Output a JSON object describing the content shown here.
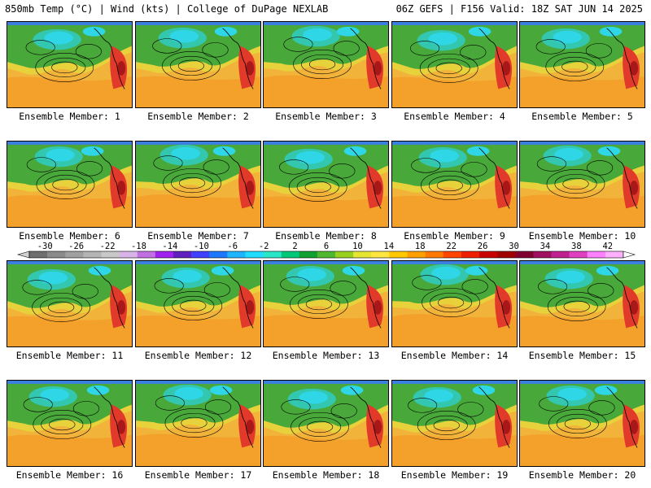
{
  "header": {
    "left": "850mb Temp (°C) | Wind (kts) | College of DuPage NEXLAB",
    "right": "06Z GEFS | F156 Valid: 18Z SAT JUN 14 2025"
  },
  "member_label_prefix": "Ensemble Member: ",
  "members": [
    1,
    2,
    3,
    4,
    5,
    6,
    7,
    8,
    9,
    10,
    11,
    12,
    13,
    14,
    15,
    16,
    17,
    18,
    19,
    20
  ],
  "colorbar": {
    "tick_labels": [
      "-30",
      "-26",
      "-22",
      "-18",
      "-14",
      "-10",
      "-6",
      "-2",
      "2",
      "6",
      "10",
      "14",
      "18",
      "22",
      "26",
      "30",
      "34",
      "38",
      "42"
    ],
    "colors": [
      "#6e6e6e",
      "#8a8a8a",
      "#a0a0a0",
      "#b4b4b4",
      "#c8c8c8",
      "#d8b4e8",
      "#c070e0",
      "#a020f0",
      "#6020c0",
      "#4040ff",
      "#1e78ff",
      "#1eb4ff",
      "#20dcff",
      "#2ae6c8",
      "#00c878",
      "#10a030",
      "#50b830",
      "#98d020",
      "#e6e632",
      "#ffe640",
      "#ffc800",
      "#ffa000",
      "#ff7800",
      "#ff4600",
      "#f01e00",
      "#c80000",
      "#a00000",
      "#800030",
      "#a01060",
      "#c02090",
      "#e040c0",
      "#ff80ff",
      "#ffb0ff"
    ]
  },
  "map_palette": {
    "warm": "#f2b33a",
    "orange": "#f49a25",
    "yellow": "#e8d23c",
    "green": "#49a83a",
    "teal": "#33c7b0",
    "cyan": "#2fd6e6",
    "blue": "#3b7fe0",
    "red": "#e23a2a",
    "darkred": "#a81818"
  }
}
